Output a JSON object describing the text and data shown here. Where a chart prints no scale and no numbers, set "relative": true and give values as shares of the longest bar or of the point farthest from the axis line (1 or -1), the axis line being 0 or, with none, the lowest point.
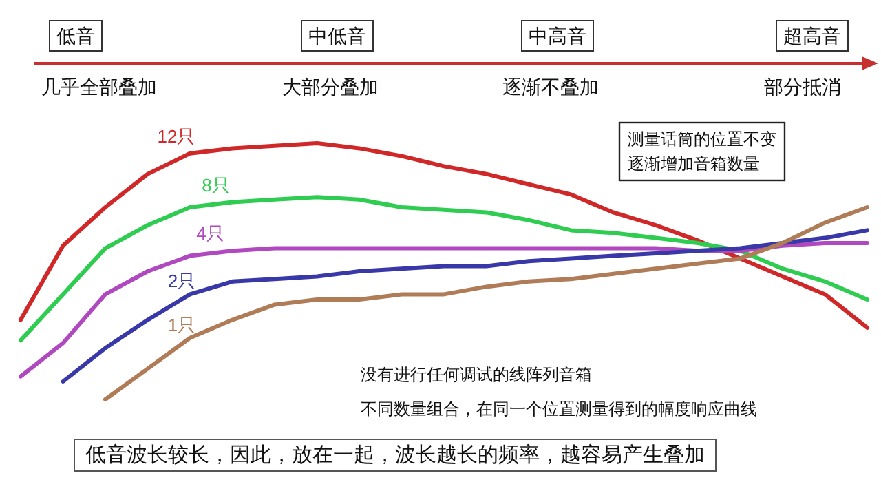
{
  "chart_data": {
    "type": "line",
    "relative": true,
    "grid": false,
    "marker": "none",
    "line_style": "solid",
    "categories": [
      null,
      null,
      null,
      null,
      null,
      null,
      null,
      null,
      null,
      null,
      null,
      null,
      null,
      null,
      null,
      null,
      null,
      null,
      null,
      null,
      null
    ],
    "series": [
      {
        "name": "12只",
        "color": "#d02828",
        "values": [
          0.31,
          0.6,
          0.75,
          0.88,
          0.96,
          0.98,
          0.99,
          1.0,
          0.98,
          0.95,
          0.91,
          0.88,
          0.84,
          0.8,
          0.73,
          0.68,
          0.62,
          0.55,
          0.48,
          0.41,
          0.28
        ]
      },
      {
        "name": "8只",
        "color": "#2ecc50",
        "values": [
          0.23,
          0.41,
          0.59,
          0.68,
          0.75,
          0.77,
          0.78,
          0.79,
          0.78,
          0.75,
          0.74,
          0.73,
          0.7,
          0.66,
          0.65,
          0.63,
          0.61,
          0.58,
          0.51,
          0.46,
          0.39
        ]
      },
      {
        "name": "4只",
        "color": "#b048c0",
        "values": [
          0.09,
          0.22,
          0.41,
          0.5,
          0.56,
          0.58,
          0.59,
          0.59,
          0.59,
          0.59,
          0.59,
          0.59,
          0.59,
          0.59,
          0.59,
          0.59,
          0.58,
          0.58,
          0.6,
          0.61,
          0.61
        ]
      },
      {
        "name": "2只",
        "color": "#3838a8",
        "values": [
          null,
          0.07,
          0.2,
          0.31,
          0.41,
          0.46,
          0.47,
          0.48,
          0.5,
          0.51,
          0.52,
          0.52,
          0.54,
          0.55,
          0.56,
          0.57,
          0.58,
          0.59,
          0.61,
          0.63,
          0.66
        ]
      },
      {
        "name": "1只",
        "color": "#b07c58",
        "values": [
          null,
          null,
          0.0,
          0.12,
          0.24,
          0.31,
          0.37,
          0.39,
          0.39,
          0.41,
          0.41,
          0.44,
          0.46,
          0.47,
          0.49,
          0.51,
          0.53,
          0.55,
          0.61,
          0.69,
          0.75
        ]
      }
    ],
    "annotations": [
      "低音",
      "中低音",
      "中高音",
      "超高音",
      "几乎全部叠加",
      "大部分叠加",
      "逐渐不叠加",
      "部分抵消",
      "测量话筒的位置不变",
      "逐渐增加音箱数量",
      "没有进行任何调试的线阵列音箱",
      "不同数量组合，在同一个位置测量得到的幅度响应曲线",
      "低音波长较长，因此，放在一起，波长越长的频率，越容易产生叠加"
    ]
  }
}
